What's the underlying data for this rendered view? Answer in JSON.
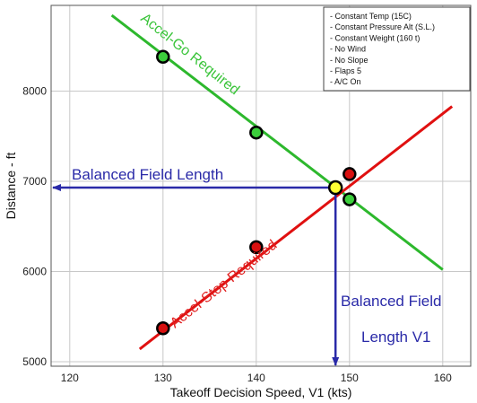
{
  "chart_data": {
    "type": "line",
    "xlabel": "Takeoff Decision Speed, V1 (kts)",
    "ylabel": "Distance - ft",
    "xlim": [
      118,
      163
    ],
    "ylim": [
      4950,
      8950
    ],
    "xticks": [
      "120",
      "130",
      "140",
      "150",
      "160"
    ],
    "yticks": [
      "5000",
      "6000",
      "7000",
      "8000"
    ],
    "grid": true,
    "series": [
      {
        "name": "Accel-Go Required",
        "color": "#2db82d",
        "line": [
          [
            124.5,
            8840
          ],
          [
            160,
            6020
          ]
        ],
        "points": [
          [
            130,
            8380
          ],
          [
            140,
            7540
          ],
          [
            150,
            6800
          ]
        ],
        "point_color": "#3ccf3c"
      },
      {
        "name": "Accel-Stop Required",
        "color": "#e01010",
        "line": [
          [
            127.5,
            5140
          ],
          [
            161,
            7830
          ]
        ],
        "points": [
          [
            130,
            5370
          ],
          [
            140,
            6270
          ],
          [
            150,
            7080
          ]
        ],
        "point_color": "#d81010"
      }
    ],
    "balanced_point": {
      "x": 148.5,
      "y": 6930,
      "color": "#ffff33"
    },
    "annotations": {
      "accel_go": "Accel-Go Required",
      "accel_stop": "Accel-Stop Required",
      "bfl": "Balanced Field Length",
      "bfl_v1_line1": "Balanced Field",
      "bfl_v1_line2": "Length V1"
    },
    "arrow_color": "#2a2aa8",
    "notes": [
      "- Constant Temp (15C)",
      "- Constant Pressure Alt (S.L.)",
      "- Constant Weight (160 t)",
      "- No Wind",
      "- No Slope",
      "- Flaps 5",
      "- A/C On"
    ]
  }
}
